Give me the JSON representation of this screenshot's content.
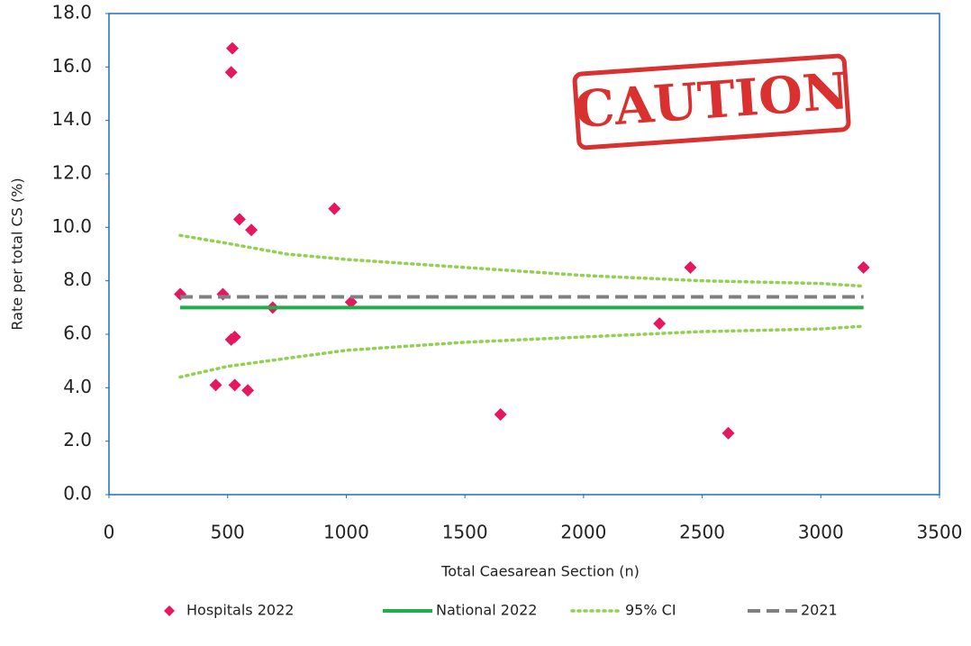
{
  "chart_data": {
    "type": "scatter",
    "x_label": "Total Caesarean Section (n)",
    "y_label": "Rate per total CS (%)",
    "annotation": "CAUTION",
    "xlim": [
      0,
      3500
    ],
    "xticks": [
      0,
      500,
      1000,
      1500,
      2000,
      2500,
      3000,
      3500
    ],
    "ylim": [
      0,
      18
    ],
    "yticks": [
      {
        "value": 0,
        "label": "0.0"
      },
      {
        "value": 2,
        "label": "2.0"
      },
      {
        "value": 4,
        "label": "4.0"
      },
      {
        "value": 6,
        "label": "6.0"
      },
      {
        "value": 8,
        "label": "8.0"
      },
      {
        "value": 10,
        "label": "10.0"
      },
      {
        "value": 12,
        "label": "12.0"
      },
      {
        "value": 14,
        "label": "14.0"
      },
      {
        "value": 16,
        "label": "16.0"
      },
      {
        "value": 18,
        "label": "18.0"
      }
    ],
    "legend": "bottom",
    "series": [
      {
        "name": "Hospitals 2022",
        "color": "#e6175c",
        "style": "diamond",
        "x": [
          300,
          450,
          480,
          520,
          515,
          515,
          530,
          530,
          550,
          600,
          585,
          690,
          950,
          1020,
          1650,
          2320,
          2450,
          2610,
          3180
        ],
        "values": [
          7.5,
          4.1,
          7.5,
          16.7,
          15.8,
          5.8,
          5.9,
          4.1,
          10.3,
          9.9,
          3.9,
          7.0,
          10.7,
          7.2,
          3.0,
          6.4,
          8.5,
          2.3,
          8.5
        ]
      },
      {
        "name": "National 2022",
        "color": "#1fae4b",
        "style": "solid",
        "x": [
          300,
          3180
        ],
        "values": [
          7.0,
          7.0
        ]
      },
      {
        "name": "95% CI",
        "color": "#92d050",
        "style": "dotted",
        "x": [
          300,
          500,
          750,
          1000,
          1500,
          2000,
          2500,
          3000,
          3180
        ],
        "upper": [
          9.7,
          9.4,
          9.0,
          8.8,
          8.5,
          8.2,
          8.0,
          7.9,
          7.8
        ],
        "lower": [
          4.4,
          4.8,
          5.1,
          5.4,
          5.7,
          5.9,
          6.1,
          6.2,
          6.3
        ]
      },
      {
        "name": "2021",
        "color": "#808080",
        "style": "dashed",
        "x": [
          300,
          3180
        ],
        "values": [
          7.4,
          7.4
        ]
      }
    ]
  }
}
